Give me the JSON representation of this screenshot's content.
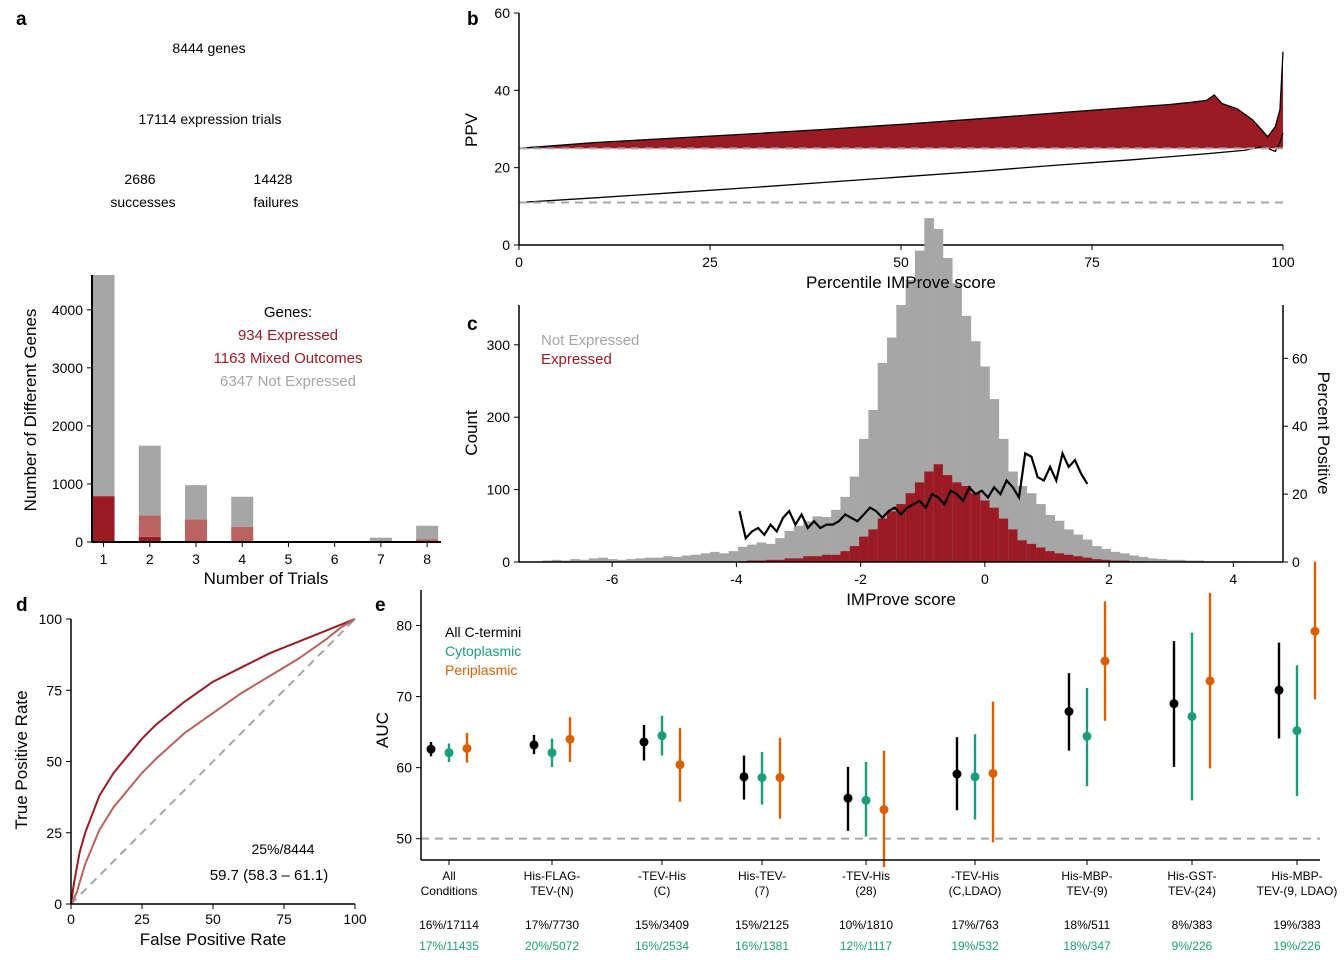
{
  "colors": {
    "red": "#9b1b24",
    "lightred": "#b9625f",
    "gray": "#a6a6a6",
    "dash": "#a6a6a6",
    "black": "#000000",
    "green": "#1b9e77",
    "orange": "#d95f02"
  },
  "panel_a": {
    "label": "a",
    "flow": {
      "genes": "8444 genes",
      "trials": "17114 expression trials",
      "successes_n": "2686",
      "successes": "successes",
      "failures_n": "14428",
      "failures": "failures"
    },
    "legend": {
      "title": "Genes:",
      "expressed": "934 Expressed",
      "mixed": "1163 Mixed Outcomes",
      "not_expressed": "6347 Not Expressed"
    }
  },
  "panel_b": {
    "label": "b"
  },
  "panel_c": {
    "label": "c"
  },
  "panel_d": {
    "label": "d",
    "annotation1": "25%/8444",
    "annotation2": "59.7 (58.3 – 61.1)"
  },
  "panel_e": {
    "label": "e",
    "legend": [
      "All C-termini",
      "Cytoplasmic",
      "Periplasmic"
    ]
  },
  "chart_data": [
    {
      "panel": "a",
      "type": "bar",
      "stacked": true,
      "xlabel": "Number of Trials",
      "ylabel": "Number of Different Genes",
      "categories": [
        1,
        2,
        3,
        4,
        5,
        6,
        7,
        8
      ],
      "ylim": [
        0,
        4600
      ],
      "yticks": [
        0,
        1000,
        2000,
        3000,
        4000
      ],
      "xticks": [
        1,
        2,
        3,
        4,
        5,
        6,
        7,
        8
      ],
      "series": [
        {
          "values": [
            790,
            90,
            0,
            0,
            0,
            0,
            5,
            10
          ]
        },
        {
          "values": [
            0,
            370,
            390,
            260,
            0,
            0,
            0,
            40
          ]
        },
        {
          "values": [
            3810,
            1200,
            590,
            520,
            0,
            0,
            70,
            230
          ]
        }
      ]
    },
    {
      "panel": "b",
      "type": "area",
      "xlabel": "Percentile IMProve score",
      "ylabel": "PPV",
      "xlim": [
        0,
        100
      ],
      "ylim": [
        0,
        60
      ],
      "xticks": [
        0,
        25,
        50,
        75,
        100
      ],
      "yticks": [
        0,
        20,
        40,
        60
      ],
      "baseline_upper": 25,
      "baseline_lower": 11,
      "upper_curve": {
        "x": [
          0,
          10,
          20,
          30,
          40,
          50,
          60,
          70,
          80,
          85,
          88,
          90,
          91,
          92,
          94,
          96,
          97,
          98,
          99,
          99.6,
          100
        ],
        "y": [
          25,
          26.5,
          27.6,
          28.7,
          29.9,
          31.2,
          32.6,
          34.1,
          35.6,
          36.3,
          36.9,
          37.4,
          38.8,
          36.6,
          35.2,
          32.4,
          30.2,
          28,
          30.6,
          35,
          50
        ]
      },
      "lower_curve": {
        "x": [
          0,
          10,
          20,
          30,
          40,
          50,
          60,
          70,
          80,
          90,
          95,
          97,
          98,
          99,
          99.6,
          100
        ],
        "y": [
          11,
          12.2,
          13.5,
          14.8,
          16.2,
          17.6,
          19,
          20.6,
          22,
          23.6,
          24.5,
          25.3,
          25,
          24.2,
          26.5,
          29
        ]
      }
    },
    {
      "panel": "c",
      "type": "bar",
      "xlabel": "IMProve score",
      "ylabel": "Count",
      "y2label": "Percent Positive",
      "legend": [
        "Not Expressed",
        "Expressed"
      ],
      "xlim": [
        -7.5,
        4.8
      ],
      "ylim": [
        0,
        355
      ],
      "y2lim": [
        0,
        75.7
      ],
      "xticks": [
        -6,
        -4,
        -2,
        0,
        2,
        4
      ],
      "yticks": [
        0,
        100,
        200,
        300
      ],
      "y2ticks": [
        0,
        20,
        40,
        60
      ],
      "bin_width": 0.15,
      "x": [
        -7.05,
        -6.9,
        -6.75,
        -6.6,
        -6.45,
        -6.3,
        -6.15,
        -6,
        -5.85,
        -5.7,
        -5.55,
        -5.4,
        -5.25,
        -5.1,
        -4.95,
        -4.8,
        -4.65,
        -4.5,
        -4.35,
        -4.2,
        -4.05,
        -3.9,
        -3.75,
        -3.6,
        -3.45,
        -3.3,
        -3.15,
        -3,
        -2.85,
        -2.7,
        -2.55,
        -2.4,
        -2.25,
        -2.1,
        -1.95,
        -1.8,
        -1.65,
        -1.5,
        -1.35,
        -1.2,
        -1.05,
        -0.9,
        -0.75,
        -0.6,
        -0.45,
        -0.3,
        -0.15,
        0,
        0.15,
        0.3,
        0.45,
        0.6,
        0.75,
        0.9,
        1.05,
        1.2,
        1.35,
        1.5,
        1.65,
        1.8,
        1.95,
        2.1,
        2.25,
        2.4,
        2.55,
        2.7,
        2.85,
        3,
        3.15,
        3.3,
        3.45,
        3.6,
        3.75,
        3.9,
        4.05,
        4.2,
        4.35,
        4.5
      ],
      "series": [
        {
          "name": "Not Expressed",
          "values": [
            2,
            3,
            2,
            4,
            3,
            5,
            6,
            4,
            3,
            4,
            5,
            6,
            6,
            8,
            7,
            9,
            10,
            12,
            14,
            12,
            15,
            20,
            22,
            25,
            22,
            30,
            38,
            45,
            48,
            55,
            52,
            62,
            75,
            96,
            135,
            165,
            215,
            240,
            275,
            295,
            320,
            350,
            325,
            300,
            275,
            235,
            210,
            185,
            150,
            110,
            80,
            75,
            70,
            60,
            50,
            45,
            35,
            30,
            25,
            18,
            15,
            12,
            10,
            8,
            6,
            5,
            4,
            3,
            3,
            2,
            2,
            1,
            1,
            1,
            1,
            1,
            0,
            0
          ]
        },
        {
          "name": "Expressed",
          "values": [
            0,
            0,
            0,
            0,
            0,
            0,
            0,
            0,
            0,
            0,
            0,
            0,
            0,
            0,
            0,
            0,
            0,
            0,
            0,
            0,
            0,
            1,
            2,
            2,
            3,
            3,
            5,
            5,
            8,
            8,
            10,
            10,
            15,
            22,
            35,
            45,
            60,
            70,
            80,
            95,
            110,
            125,
            135,
            120,
            110,
            105,
            95,
            85,
            75,
            60,
            45,
            30,
            25,
            20,
            15,
            12,
            10,
            8,
            6,
            4,
            3,
            2,
            2,
            1,
            1,
            0,
            0,
            0,
            0,
            0,
            0,
            0,
            0,
            0,
            0,
            0,
            0,
            0
          ]
        }
      ],
      "percent_positive": {
        "x": [
          -3.95,
          -3.85,
          -3.75,
          -3.65,
          -3.55,
          -3.45,
          -3.35,
          -3.25,
          -3.15,
          -3.05,
          -2.95,
          -2.85,
          -2.75,
          -2.65,
          -2.55,
          -2.45,
          -2.35,
          -2.25,
          -2.15,
          -2.05,
          -1.95,
          -1.85,
          -1.75,
          -1.65,
          -1.55,
          -1.45,
          -1.35,
          -1.25,
          -1.15,
          -1.05,
          -0.95,
          -0.85,
          -0.75,
          -0.65,
          -0.55,
          -0.45,
          -0.35,
          -0.25,
          -0.15,
          -0.05,
          0.05,
          0.15,
          0.25,
          0.35,
          0.45,
          0.55,
          0.65,
          0.75,
          0.85,
          0.95,
          1.05,
          1.15,
          1.25,
          1.35,
          1.45,
          1.55,
          1.65
        ],
        "y": [
          15,
          7,
          9,
          10,
          8,
          11,
          9,
          13,
          15,
          11,
          14,
          10,
          12,
          10,
          11,
          11,
          12,
          14,
          13,
          12,
          14,
          16,
          15,
          13,
          15,
          16,
          14,
          16,
          17,
          18,
          16,
          20,
          19,
          17,
          21,
          20,
          18,
          22,
          20,
          21,
          19,
          22,
          20,
          24,
          22,
          19,
          32,
          31,
          25,
          24,
          28,
          24,
          32,
          28,
          30,
          26,
          23
        ]
      }
    },
    {
      "panel": "d",
      "type": "line",
      "xlabel": "False Positive Rate",
      "ylabel": "True Positive Rate",
      "xlim": [
        0,
        100
      ],
      "ylim": [
        0,
        100
      ],
      "xticks": [
        0,
        25,
        50,
        75,
        100
      ],
      "yticks": [
        0,
        25,
        50,
        75,
        100
      ],
      "series": [
        {
          "x": [
            0,
            1,
            3,
            5,
            10,
            15,
            20,
            25,
            30,
            40,
            50,
            60,
            70,
            80,
            90,
            95,
            100
          ],
          "y": [
            0,
            7,
            18,
            25,
            38,
            46,
            52,
            58,
            63,
            71,
            78,
            83,
            88,
            92,
            96,
            98,
            100
          ]
        },
        {
          "x": [
            0,
            2,
            5,
            10,
            15,
            20,
            25,
            30,
            40,
            50,
            60,
            70,
            80,
            90,
            95,
            100
          ],
          "y": [
            0,
            4,
            14,
            26,
            34,
            40,
            46,
            51,
            60,
            67,
            74,
            80,
            86,
            93,
            97,
            100
          ]
        }
      ]
    },
    {
      "panel": "e",
      "type": "scatter",
      "ylabel": "AUC",
      "ylim": [
        47,
        85
      ],
      "yticks": [
        50,
        60,
        70,
        80
      ],
      "reference": 50,
      "categories": [
        "All\nConditions",
        "His-FLAG-\nTEV-(N)",
        "-TEV-His\n(C)",
        "His-TEV-\n(7)",
        "-TEV-His\n(28)",
        "-TEV-His\n(C,LDAO)",
        "His-MBP-\nTEV-(9)",
        "His-GST-\nTEV-(24)",
        "His-MBP-\nTEV-(9, LDAO)"
      ],
      "stats_black": [
        "16%/17114",
        "17%/7730",
        "15%/3409",
        "15%/2125",
        "10%/1810",
        "17%/763",
        "18%/511",
        "8%/383",
        "19%/383"
      ],
      "stats_green": [
        "17%/11435",
        "20%/5072",
        "16%/2534",
        "16%/1381",
        "12%/1117",
        "19%/532",
        "18%/347",
        "9%/226",
        "19%/226"
      ],
      "series": [
        {
          "name": "All C-termini",
          "values": [
            62.6,
            63.2,
            63.6,
            58.7,
            55.7,
            59.1,
            67.9,
            69.0,
            70.9
          ],
          "lo": [
            61.6,
            61.9,
            61.0,
            55.5,
            51.1,
            54.0,
            62.4,
            60.1,
            64.1
          ],
          "hi": [
            63.6,
            64.6,
            66.0,
            61.7,
            60.1,
            64.3,
            73.3,
            77.8,
            77.6
          ]
        },
        {
          "name": "Cytoplasmic",
          "values": [
            62.1,
            62.1,
            64.5,
            58.6,
            55.4,
            58.7,
            64.4,
            67.2,
            65.2
          ],
          "lo": [
            60.8,
            60.1,
            61.7,
            54.8,
            50.3,
            52.7,
            57.4,
            55.4,
            56.0
          ],
          "hi": [
            63.4,
            64.1,
            67.3,
            62.2,
            60.8,
            64.7,
            71.2,
            79.0,
            74.4
          ]
        },
        {
          "name": "Periplasmic",
          "values": [
            62.7,
            64.0,
            60.4,
            58.6,
            54.1,
            59.2,
            75.0,
            72.2,
            79.2
          ],
          "lo": [
            60.7,
            60.8,
            55.2,
            52.8,
            46.0,
            49.5,
            66.6,
            59.9,
            69.6
          ],
          "hi": [
            64.9,
            67.1,
            65.6,
            64.2,
            62.4,
            69.3,
            83.4,
            84.6,
            89.6
          ]
        }
      ]
    }
  ]
}
